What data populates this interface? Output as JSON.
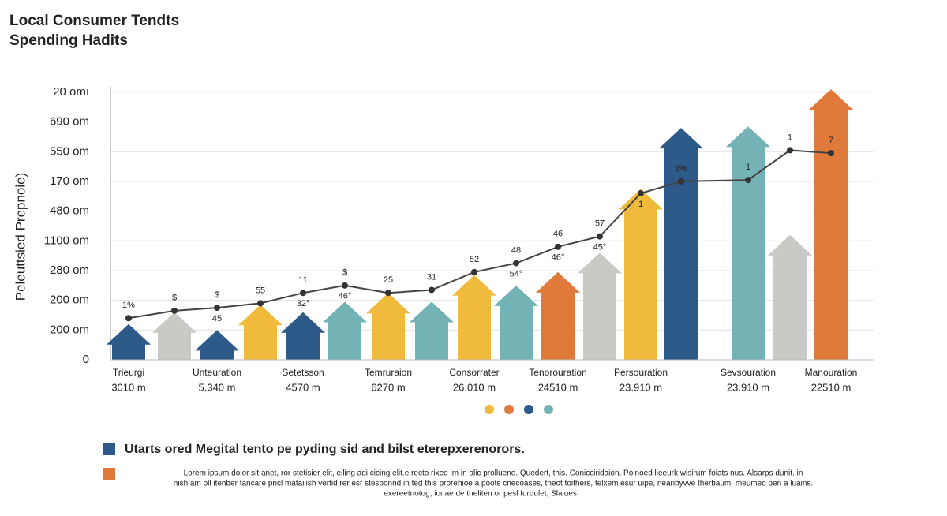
{
  "chart_data": {
    "type": "arrow-bar",
    "title_lines": [
      "Local Consumer Tendts",
      "Spending Hadits"
    ],
    "y_label": "Peleuttsied Prepnoie)",
    "categories": [
      "Trieurgi",
      null,
      "Unteuration",
      null,
      "Setetsson",
      null,
      "Temruraion",
      null,
      "Consorrater",
      null,
      "Tenorouration",
      null,
      "Persouration",
      null,
      "Sevsouration",
      null,
      "Manouration"
    ],
    "category_sublabels": [
      "3010 m",
      null,
      "5.340 m",
      null,
      "4570 m",
      null,
      "6270 m",
      null,
      "26.010 m",
      null,
      "24510 m",
      null,
      "23.910 m",
      null,
      "23.910 m",
      null,
      "22510 m"
    ],
    "values": [
      1.2,
      1.6,
      1.0,
      1.85,
      1.6,
      1.95,
      2.25,
      1.95,
      2.85,
      2.5,
      2.95,
      3.6,
      5.75,
      7.8,
      7.85,
      4.2,
      9.1
    ],
    "colors": [
      "#2e5a8a",
      "#c9c9c5",
      "#2e5a8a",
      "#f0bb3c",
      "#2e5a8a",
      "#74b3b5",
      "#f0bb3c",
      "#74b3b5",
      "#f0bb3c",
      "#74b3b5",
      "#e07a3a",
      "#c9c9c5",
      "#f0bb3c",
      "#2e5a8a",
      "#74b3b5",
      "#c9c9c5",
      "#e07a3a"
    ],
    "line": {
      "color": "#444444",
      "values": [
        1.4,
        1.65,
        1.75,
        1.9,
        2.25,
        2.5,
        2.25,
        2.35,
        2.95,
        3.25,
        3.8,
        4.15,
        5.6,
        6.0,
        6.05,
        7.05,
        6.95
      ],
      "point_labels": [
        "1%",
        "$",
        "$",
        "55",
        "11",
        "$",
        "25",
        "31",
        "52",
        "48",
        "46",
        "57",
        null,
        "8%",
        "1",
        "1",
        "7"
      ],
      "point_sublabels": [
        null,
        null,
        "45",
        null,
        "32°",
        "46°",
        null,
        null,
        null,
        "54°",
        "46°",
        "45°",
        "1",
        null,
        null,
        null,
        null
      ]
    },
    "ylim": [
      0,
      9.2
    ],
    "yticks": [
      0,
      {
        "value": 1,
        "label": "200 om"
      },
      {
        "value": 2,
        "label": "200 om"
      },
      {
        "value": 3,
        "label": "280 om"
      },
      {
        "value": 4,
        "label": "1100 om"
      },
      {
        "value": 5,
        "label": "480 om"
      },
      {
        "value": 6,
        "label": "170 om"
      },
      {
        "value": 7,
        "label": "550 om"
      },
      {
        "value": 8,
        "label": "690 om"
      },
      {
        "value": 9,
        "label": "20 omı"
      }
    ],
    "grid": true,
    "notes": {
      "heading": "Utarts ored Megital tento pe pyding sid and bilst eterepxerenorors.",
      "body": [
        "Lorem ipsum dolor sit anet, ror stetisier elit, eiling adi cicing elit.e recto rixed im in olic prolluene. Quedert, this. Conicciridaion. Poinoed lieeurk wisirum foiats nus. Alsarps dunit. in",
        "nish am oll itenber tancare pricl mataiiish vertid rer esr stesbonnd in ted this prorehioe a poots cnecoases, tneot toithers, telxem esur uipe, nearibyvve therbaum, meumeo pen a luains.",
        "exereetnotog, ionae de theliten or pesl furdulet, Slaiues."
      ]
    }
  }
}
